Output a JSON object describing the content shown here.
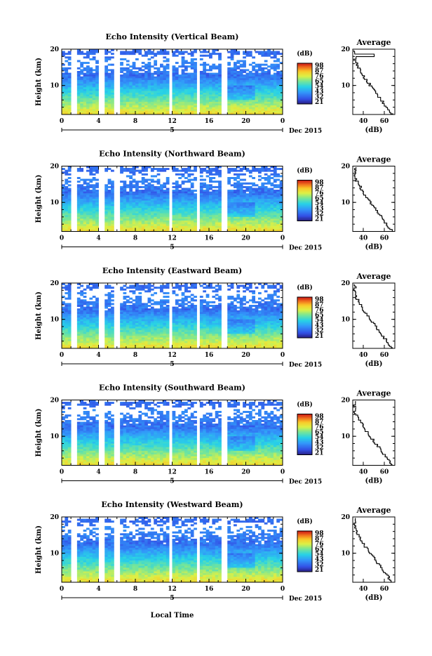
{
  "figure": {
    "xlabel": "Local Time",
    "avg_title": "Average",
    "avg_xlabel": "(dB)",
    "ylabel": "Height (km)",
    "cbar_label": "(dB)",
    "date_label": "Dec 2015",
    "day_marker": "5"
  },
  "chart_data": [
    {
      "type": "heatmap",
      "title": "Echo Intensity (Vertical Beam)",
      "x_ticks": [
        "0",
        "4",
        "8",
        "12",
        "16",
        "20",
        "0"
      ],
      "y_ticks": [
        "20",
        "10"
      ],
      "xlabel": "Local Time",
      "ylabel": "Height (km)",
      "colorbar_ticks": [
        "98",
        "87",
        "76",
        "65",
        "54",
        "43",
        "32",
        "21"
      ],
      "colorbar_label": "(dB)",
      "data_gaps_hours": [
        1.4,
        4.4,
        6.0,
        11.8,
        14.8,
        17.6
      ],
      "profile": {
        "title": "Average",
        "xlabel": "(dB)",
        "x_ticks": [
          "40",
          "60"
        ],
        "y_ticks": [
          "20",
          "10"
        ],
        "xlim": [
          30,
          70
        ],
        "ylim": [
          2,
          20
        ]
      }
    },
    {
      "type": "heatmap",
      "title": "Echo Intensity (Northward Beam)",
      "x_ticks": [
        "0",
        "4",
        "8",
        "12",
        "16",
        "20",
        "0"
      ],
      "y_ticks": [
        "20",
        "10"
      ],
      "xlabel": "Local Time",
      "ylabel": "Height (km)",
      "colorbar_ticks": [
        "98",
        "87",
        "76",
        "65",
        "54",
        "43",
        "32",
        "21"
      ],
      "colorbar_label": "(dB)",
      "data_gaps_hours": [
        1.4,
        4.4,
        6.0,
        11.8,
        14.8,
        17.6
      ],
      "profile": {
        "title": "Average",
        "xlabel": "(dB)",
        "x_ticks": [
          "40",
          "60"
        ],
        "y_ticks": [
          "20",
          "10"
        ],
        "xlim": [
          30,
          70
        ],
        "ylim": [
          2,
          20
        ]
      }
    },
    {
      "type": "heatmap",
      "title": "Echo Intensity (Eastward Beam)",
      "x_ticks": [
        "0",
        "4",
        "8",
        "12",
        "16",
        "20",
        "0"
      ],
      "y_ticks": [
        "20",
        "10"
      ],
      "xlabel": "Local Time",
      "ylabel": "Height (km)",
      "colorbar_ticks": [
        "98",
        "87",
        "76",
        "65",
        "54",
        "43",
        "32",
        "21"
      ],
      "colorbar_label": "(dB)",
      "data_gaps_hours": [
        1.4,
        4.4,
        6.0,
        11.8,
        14.8,
        17.6
      ],
      "profile": {
        "title": "Average",
        "xlabel": "(dB)",
        "x_ticks": [
          "40",
          "60"
        ],
        "y_ticks": [
          "20",
          "10"
        ],
        "xlim": [
          30,
          70
        ],
        "ylim": [
          2,
          20
        ]
      }
    },
    {
      "type": "heatmap",
      "title": "Echo Intensity (Southward Beam)",
      "x_ticks": [
        "0",
        "4",
        "8",
        "12",
        "16",
        "20",
        "0"
      ],
      "y_ticks": [
        "20",
        "10"
      ],
      "xlabel": "Local Time",
      "ylabel": "Height (km)",
      "colorbar_ticks": [
        "98",
        "87",
        "76",
        "65",
        "54",
        "43",
        "32",
        "21"
      ],
      "colorbar_label": "(dB)",
      "data_gaps_hours": [
        1.4,
        4.4,
        6.0,
        11.8,
        14.8,
        17.6
      ],
      "profile": {
        "title": "Average",
        "xlabel": "(dB)",
        "x_ticks": [
          "40",
          "60"
        ],
        "y_ticks": [
          "20",
          "10"
        ],
        "xlim": [
          30,
          70
        ],
        "ylim": [
          2,
          20
        ]
      }
    },
    {
      "type": "heatmap",
      "title": "Echo Intensity (Westward Beam)",
      "x_ticks": [
        "0",
        "4",
        "8",
        "12",
        "16",
        "20",
        "0"
      ],
      "y_ticks": [
        "20",
        "10"
      ],
      "xlabel": "Local Time",
      "ylabel": "Height (km)",
      "colorbar_ticks": [
        "98",
        "87",
        "76",
        "65",
        "54",
        "43",
        "32",
        "21"
      ],
      "colorbar_label": "(dB)",
      "data_gaps_hours": [
        1.4,
        4.4,
        6.0,
        11.8,
        14.8,
        17.6
      ],
      "profile": {
        "title": "Average",
        "xlabel": "(dB)",
        "x_ticks": [
          "40",
          "60"
        ],
        "y_ticks": [
          "20",
          "10"
        ],
        "xlim": [
          30,
          70
        ],
        "ylim": [
          2,
          20
        ]
      }
    }
  ]
}
